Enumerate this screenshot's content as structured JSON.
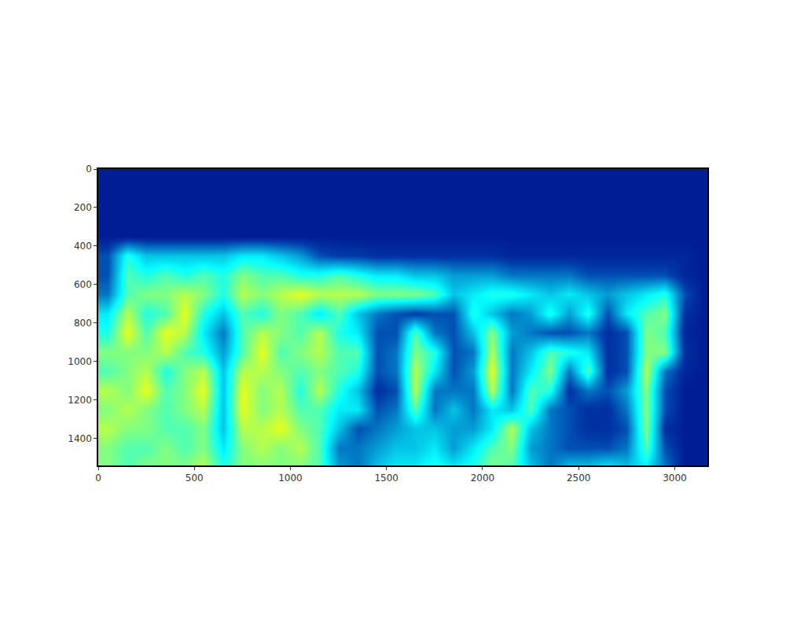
{
  "chart_data": {
    "type": "heatmap",
    "color": "Jet",
    "grid": false,
    "xlim": [
      0,
      3170
    ],
    "ylim": [
      1540,
      0
    ],
    "xticks": [
      0,
      500,
      1000,
      1500,
      2000,
      2500,
      3000
    ],
    "yticks": [
      0,
      200,
      400,
      600,
      800,
      1000,
      1200,
      1400
    ],
    "zlim": [
      0,
      1
    ],
    "x": [
      50,
      150,
      250,
      350,
      450,
      550,
      650,
      750,
      850,
      950,
      1050,
      1150,
      1250,
      1350,
      1450,
      1550,
      1650,
      1750,
      1850,
      1950,
      2050,
      2150,
      2250,
      2350,
      2450,
      2550,
      2650,
      2750,
      2850,
      2950,
      3050,
      3150
    ],
    "y": [
      50,
      150,
      250,
      350,
      450,
      550,
      650,
      750,
      850,
      950,
      1050,
      1150,
      1250,
      1350,
      1450,
      1550
    ],
    "cells": [
      [
        0.06,
        0.06,
        0.06,
        0.06,
        0.06,
        0.06,
        0.06,
        0.06,
        0.06,
        0.06,
        0.06,
        0.06,
        0.06,
        0.06,
        0.06,
        0.06,
        0.06,
        0.06,
        0.06,
        0.06,
        0.06,
        0.06,
        0.06,
        0.06,
        0.06,
        0.06,
        0.06,
        0.06,
        0.06,
        0.06,
        0.06,
        0.06
      ],
      [
        0.06,
        0.06,
        0.06,
        0.06,
        0.06,
        0.06,
        0.06,
        0.06,
        0.06,
        0.06,
        0.06,
        0.06,
        0.06,
        0.06,
        0.06,
        0.06,
        0.06,
        0.06,
        0.06,
        0.06,
        0.06,
        0.06,
        0.06,
        0.06,
        0.06,
        0.06,
        0.06,
        0.06,
        0.06,
        0.06,
        0.06,
        0.06
      ],
      [
        0.06,
        0.06,
        0.06,
        0.06,
        0.06,
        0.06,
        0.06,
        0.06,
        0.06,
        0.06,
        0.06,
        0.06,
        0.06,
        0.06,
        0.06,
        0.06,
        0.06,
        0.06,
        0.06,
        0.06,
        0.06,
        0.06,
        0.06,
        0.06,
        0.06,
        0.06,
        0.06,
        0.06,
        0.06,
        0.06,
        0.06,
        0.06
      ],
      [
        0.06,
        0.06,
        0.06,
        0.06,
        0.06,
        0.06,
        0.06,
        0.06,
        0.06,
        0.06,
        0.06,
        0.06,
        0.06,
        0.06,
        0.06,
        0.06,
        0.06,
        0.06,
        0.06,
        0.06,
        0.06,
        0.06,
        0.06,
        0.06,
        0.06,
        0.06,
        0.06,
        0.06,
        0.06,
        0.06,
        0.06,
        0.06
      ],
      [
        0.15,
        0.4,
        0.3,
        0.3,
        0.3,
        0.3,
        0.3,
        0.35,
        0.35,
        0.3,
        0.25,
        0.15,
        0.12,
        0.12,
        0.1,
        0.1,
        0.1,
        0.1,
        0.1,
        0.1,
        0.1,
        0.08,
        0.08,
        0.08,
        0.08,
        0.08,
        0.08,
        0.08,
        0.08,
        0.08,
        0.08,
        0.06
      ],
      [
        0.15,
        0.45,
        0.4,
        0.45,
        0.4,
        0.45,
        0.4,
        0.5,
        0.45,
        0.45,
        0.4,
        0.4,
        0.45,
        0.4,
        0.35,
        0.35,
        0.3,
        0.3,
        0.25,
        0.25,
        0.25,
        0.2,
        0.2,
        0.2,
        0.2,
        0.15,
        0.15,
        0.15,
        0.15,
        0.15,
        0.08,
        0.06
      ],
      [
        0.2,
        0.45,
        0.5,
        0.5,
        0.55,
        0.5,
        0.4,
        0.55,
        0.5,
        0.55,
        0.6,
        0.55,
        0.55,
        0.55,
        0.5,
        0.5,
        0.5,
        0.45,
        0.3,
        0.35,
        0.4,
        0.4,
        0.35,
        0.3,
        0.35,
        0.3,
        0.25,
        0.3,
        0.35,
        0.4,
        0.15,
        0.06
      ],
      [
        0.35,
        0.55,
        0.4,
        0.45,
        0.6,
        0.4,
        0.3,
        0.45,
        0.4,
        0.5,
        0.45,
        0.35,
        0.45,
        0.3,
        0.2,
        0.15,
        0.12,
        0.15,
        0.15,
        0.4,
        0.3,
        0.2,
        0.25,
        0.4,
        0.25,
        0.4,
        0.15,
        0.35,
        0.45,
        0.5,
        0.1,
        0.06
      ],
      [
        0.4,
        0.6,
        0.45,
        0.6,
        0.55,
        0.35,
        0.2,
        0.45,
        0.55,
        0.5,
        0.45,
        0.55,
        0.4,
        0.35,
        0.15,
        0.15,
        0.45,
        0.2,
        0.15,
        0.3,
        0.5,
        0.25,
        0.2,
        0.15,
        0.15,
        0.2,
        0.1,
        0.15,
        0.5,
        0.45,
        0.08,
        0.06
      ],
      [
        0.5,
        0.5,
        0.5,
        0.55,
        0.45,
        0.4,
        0.25,
        0.45,
        0.6,
        0.45,
        0.5,
        0.55,
        0.45,
        0.45,
        0.15,
        0.2,
        0.5,
        0.4,
        0.15,
        0.2,
        0.55,
        0.2,
        0.3,
        0.45,
        0.4,
        0.35,
        0.1,
        0.15,
        0.5,
        0.5,
        0.1,
        0.06
      ],
      [
        0.45,
        0.5,
        0.55,
        0.4,
        0.5,
        0.55,
        0.3,
        0.55,
        0.55,
        0.5,
        0.45,
        0.5,
        0.45,
        0.4,
        0.15,
        0.2,
        0.55,
        0.35,
        0.15,
        0.25,
        0.6,
        0.2,
        0.35,
        0.5,
        0.2,
        0.45,
        0.1,
        0.15,
        0.55,
        0.2,
        0.08,
        0.06
      ],
      [
        0.55,
        0.5,
        0.6,
        0.45,
        0.5,
        0.6,
        0.3,
        0.6,
        0.5,
        0.55,
        0.4,
        0.55,
        0.4,
        0.3,
        0.1,
        0.15,
        0.55,
        0.2,
        0.2,
        0.2,
        0.55,
        0.2,
        0.45,
        0.4,
        0.1,
        0.2,
        0.15,
        0.25,
        0.5,
        0.15,
        0.06,
        0.06
      ],
      [
        0.5,
        0.55,
        0.5,
        0.45,
        0.5,
        0.55,
        0.3,
        0.6,
        0.5,
        0.55,
        0.45,
        0.45,
        0.35,
        0.35,
        0.15,
        0.2,
        0.45,
        0.2,
        0.3,
        0.2,
        0.35,
        0.3,
        0.45,
        0.2,
        0.15,
        0.1,
        0.1,
        0.2,
        0.5,
        0.15,
        0.06,
        0.06
      ],
      [
        0.55,
        0.5,
        0.5,
        0.45,
        0.45,
        0.5,
        0.3,
        0.55,
        0.55,
        0.6,
        0.5,
        0.45,
        0.3,
        0.15,
        0.2,
        0.25,
        0.3,
        0.3,
        0.25,
        0.25,
        0.35,
        0.55,
        0.3,
        0.2,
        0.15,
        0.1,
        0.1,
        0.15,
        0.5,
        0.1,
        0.06,
        0.06
      ],
      [
        0.5,
        0.45,
        0.45,
        0.5,
        0.45,
        0.5,
        0.35,
        0.5,
        0.55,
        0.5,
        0.55,
        0.45,
        0.2,
        0.2,
        0.25,
        0.3,
        0.3,
        0.35,
        0.25,
        0.35,
        0.45,
        0.5,
        0.25,
        0.2,
        0.15,
        0.15,
        0.15,
        0.2,
        0.45,
        0.15,
        0.06,
        0.06
      ],
      [
        0.5,
        0.45,
        0.5,
        0.5,
        0.5,
        0.55,
        0.4,
        0.5,
        0.5,
        0.5,
        0.5,
        0.45,
        0.25,
        0.2,
        0.3,
        0.35,
        0.35,
        0.4,
        0.35,
        0.4,
        0.5,
        0.45,
        0.3,
        0.2,
        0.3,
        0.3,
        0.35,
        0.3,
        0.35,
        0.2,
        0.06,
        0.06
      ]
    ]
  }
}
